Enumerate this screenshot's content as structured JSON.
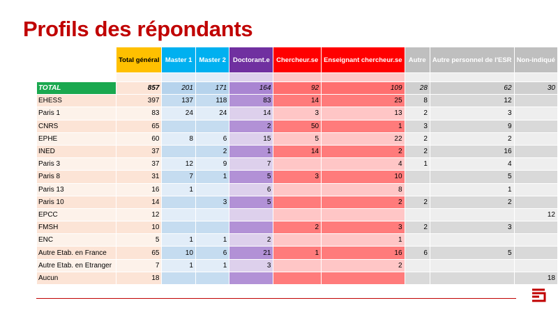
{
  "title": "Profils des répondants",
  "columns": [
    {
      "key": "total",
      "label": "Total général",
      "header_bg": "#ffc000",
      "cell_bg": "#fce4d6"
    },
    {
      "key": "m1",
      "label": "Master 1",
      "header_bg": "#00b0f0",
      "cell_bg": "#c6dff2"
    },
    {
      "key": "m2",
      "label": "Master 2",
      "header_bg": "#00b0f0",
      "cell_bg": "#c6dff2"
    },
    {
      "key": "doc",
      "label": "Doctorant.e",
      "header_bg": "#7030a0",
      "cell_bg": "#c9a7dd"
    },
    {
      "key": "ch",
      "label": "Chercheur.se",
      "header_bg": "#ff0000",
      "cell_bg": "#ff8f8f"
    },
    {
      "key": "ens",
      "label": "Enseignant chercheur.se",
      "header_bg": "#ff0000",
      "cell_bg": "#ff8f8f"
    },
    {
      "key": "autre",
      "label": "Autre",
      "header_bg": "#bfbfbf",
      "cell_bg": "#d9d9d9"
    },
    {
      "key": "esr",
      "label": "Autre personnel de l'ESR",
      "header_bg": "#bfbfbf",
      "cell_bg": "#d9d9d9"
    },
    {
      "key": "ni",
      "label": "Non-indiqué",
      "header_bg": "#bfbfbf",
      "cell_bg": "#d9d9d9"
    }
  ],
  "band_colors": {
    "name": [
      "#fce4d6",
      "#fdf2ea"
    ],
    "total": [
      "#fce4d6",
      "#fdf2ea"
    ],
    "m1": [
      "#c5dcf0",
      "#e2edf8"
    ],
    "m2": [
      "#c5dcf0",
      "#e2edf8"
    ],
    "doc": [
      "#b291d6",
      "#ddd0ec"
    ],
    "ch": [
      "#ff7b7b",
      "#ffc6c6"
    ],
    "ens": [
      "#ff7b7b",
      "#ffc6c6"
    ],
    "autre": [
      "#d9d9d9",
      "#eeeeee"
    ],
    "esr": [
      "#d9d9d9",
      "#eeeeee"
    ],
    "ni": [
      "#d9d9d9",
      "#eeeeee"
    ]
  },
  "total_row": {
    "label": "TOTAL",
    "values": [
      "857",
      "201",
      "171",
      "164",
      "92",
      "109",
      "28",
      "62",
      "30"
    ],
    "colors": {
      "total": "#fce4d6",
      "m1": "#b6d3ec",
      "m2": "#b6d3ec",
      "doc": "#a985d2",
      "ch": "#ff6f6f",
      "ens": "#ff6f6f",
      "autre": "#cfcfcf",
      "esr": "#cfcfcf",
      "ni": "#cfcfcf"
    }
  },
  "rows": [
    {
      "name": "EHESS",
      "values": [
        "397",
        "137",
        "118",
        "83",
        "14",
        "25",
        "8",
        "12",
        ""
      ]
    },
    {
      "name": "Paris 1",
      "values": [
        "83",
        "24",
        "24",
        "14",
        "3",
        "13",
        "2",
        "3",
        ""
      ]
    },
    {
      "name": "CNRS",
      "values": [
        "65",
        "",
        "",
        "2",
        "50",
        "1",
        "3",
        "9",
        ""
      ]
    },
    {
      "name": "EPHE",
      "values": [
        "60",
        "8",
        "6",
        "15",
        "5",
        "22",
        "2",
        "2",
        ""
      ]
    },
    {
      "name": "INED",
      "values": [
        "37",
        "",
        "2",
        "1",
        "14",
        "2",
        "2",
        "16",
        ""
      ]
    },
    {
      "name": "Paris 3",
      "values": [
        "37",
        "12",
        "9",
        "7",
        "",
        "4",
        "1",
        "4",
        ""
      ]
    },
    {
      "name": "Paris 8",
      "values": [
        "31",
        "7",
        "1",
        "5",
        "3",
        "10",
        "",
        "5",
        ""
      ]
    },
    {
      "name": "Paris 13",
      "values": [
        "16",
        "1",
        "",
        "6",
        "",
        "8",
        "",
        "1",
        ""
      ]
    },
    {
      "name": "Paris 10",
      "values": [
        "14",
        "",
        "3",
        "5",
        "",
        "2",
        "2",
        "2",
        ""
      ]
    },
    {
      "name": "EPCC",
      "values": [
        "12",
        "",
        "",
        "",
        "",
        "",
        "",
        "",
        "12"
      ]
    },
    {
      "name": "FMSH",
      "values": [
        "10",
        "",
        "",
        "",
        "2",
        "3",
        "2",
        "3",
        ""
      ]
    },
    {
      "name": "ENC",
      "values": [
        "5",
        "1",
        "1",
        "2",
        "",
        "1",
        "",
        "",
        ""
      ]
    },
    {
      "name": "Autre Etab. en France",
      "values": [
        "65",
        "10",
        "6",
        "21",
        "1",
        "16",
        "6",
        "5",
        ""
      ]
    },
    {
      "name": "Autre Etab. en Etranger",
      "values": [
        "7",
        "1",
        "1",
        "3",
        "",
        "2",
        "",
        "",
        ""
      ]
    },
    {
      "name": "Aucun",
      "values": [
        "18",
        "",
        "",
        "",
        "",
        "",
        "",
        "",
        "18"
      ]
    }
  ],
  "colors": {
    "title": "#c00000",
    "total_label_bg": "#1aa84f",
    "accent_line": "#c00000"
  },
  "icons": {
    "logo": "brand-logo-icon"
  }
}
